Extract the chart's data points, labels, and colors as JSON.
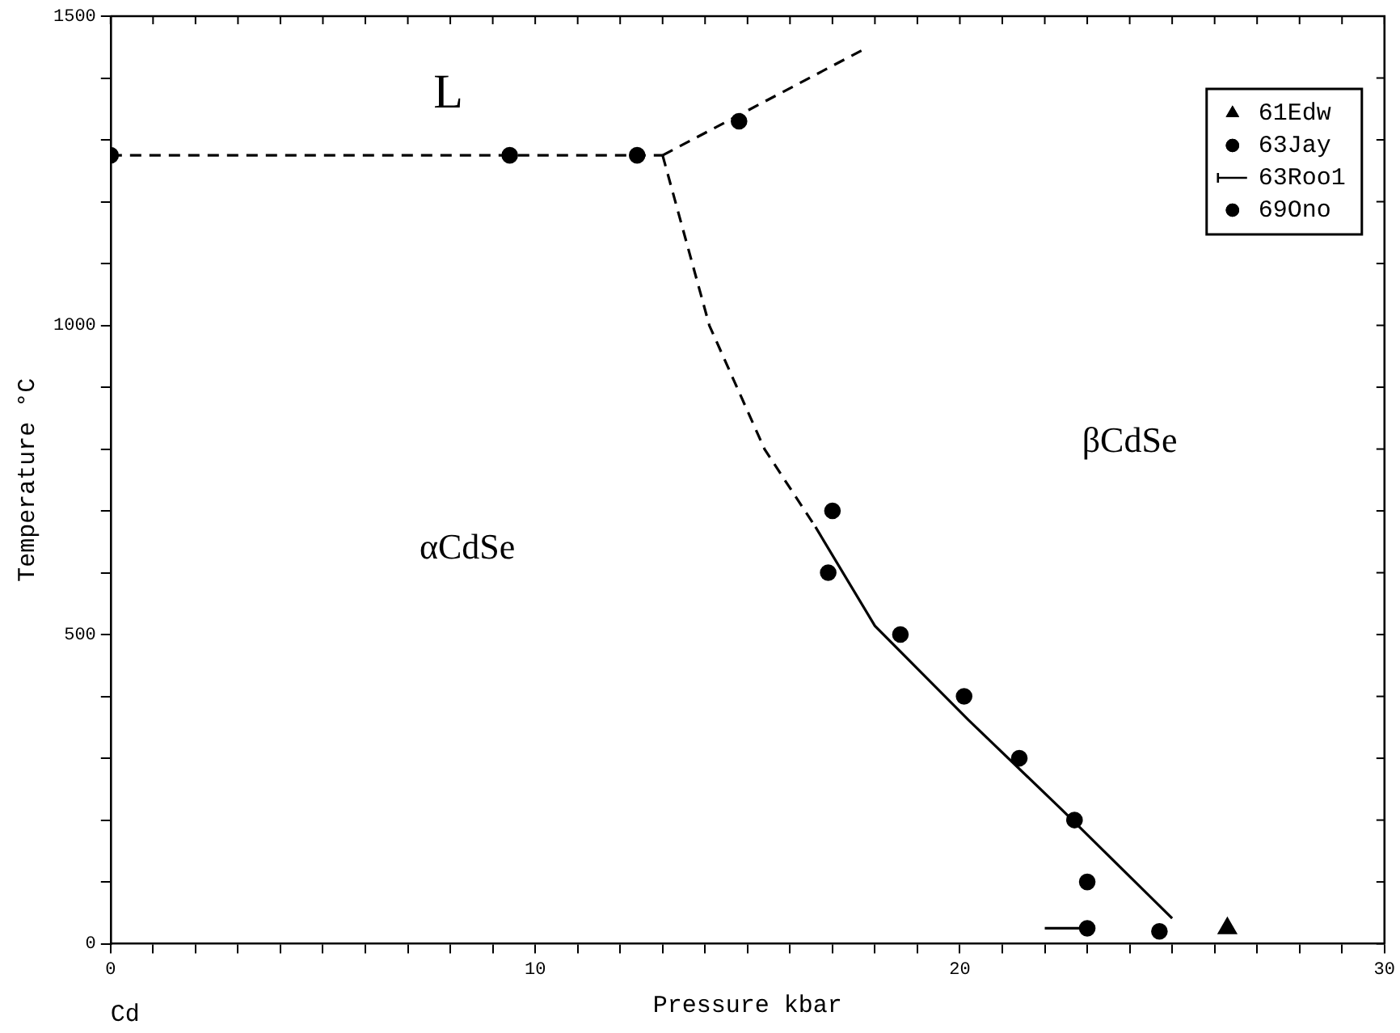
{
  "chart_data": {
    "type": "scatter",
    "xlabel": "Pressure kbar",
    "ylabel": "Temperature °C",
    "xlim": [
      0,
      30
    ],
    "ylim": [
      0,
      1500
    ],
    "xticks": [
      0,
      {
        "value": 1,
        "label": null
      },
      {
        "value": 2,
        "label": null
      },
      {
        "value": 3,
        "label": null
      },
      {
        "value": 4,
        "label": null
      },
      {
        "value": 5,
        "label": null
      },
      {
        "value": 6,
        "label": null
      },
      {
        "value": 7,
        "label": null
      },
      {
        "value": 8,
        "label": null
      },
      {
        "value": 9,
        "label": null
      },
      10,
      {
        "value": 11,
        "label": null
      },
      {
        "value": 12,
        "label": null
      },
      {
        "value": 13,
        "label": null
      },
      {
        "value": 14,
        "label": null
      },
      {
        "value": 15,
        "label": null
      },
      {
        "value": 16,
        "label": null
      },
      {
        "value": 17,
        "label": null
      },
      {
        "value": 18,
        "label": null
      },
      {
        "value": 19,
        "label": null
      },
      20,
      {
        "value": 21,
        "label": null
      },
      {
        "value": 22,
        "label": null
      },
      {
        "value": 23,
        "label": null
      },
      {
        "value": 24,
        "label": null
      },
      {
        "value": 25,
        "label": null
      },
      {
        "value": 26,
        "label": null
      },
      {
        "value": 27,
        "label": null
      },
      {
        "value": 28,
        "label": null
      },
      {
        "value": 29,
        "label": null
      },
      30
    ],
    "yticks": [
      0,
      {
        "value": 100,
        "label": null
      },
      {
        "value": 200,
        "label": null
      },
      {
        "value": 300,
        "label": null
      },
      {
        "value": 400,
        "label": null
      },
      500,
      {
        "value": 600,
        "label": null
      },
      {
        "value": 700,
        "label": null
      },
      {
        "value": 800,
        "label": null
      },
      {
        "value": 900,
        "label": null
      },
      1000,
      {
        "value": 1100,
        "label": null
      },
      {
        "value": 1200,
        "label": null
      },
      {
        "value": 1300,
        "label": null
      },
      {
        "value": 1400,
        "label": null
      },
      1500
    ],
    "grid": false,
    "legend": "top right",
    "series": [
      {
        "type": "line",
        "color": "#000000",
        "line_style": "dashed",
        "marker": "none",
        "x": [
          0,
          13.0
        ],
        "values": [
          1275,
          1275
        ]
      },
      {
        "type": "line",
        "color": "#000000",
        "line_style": "dashed",
        "marker": "none",
        "x": [
          13.0,
          17.7
        ],
        "values": [
          1275,
          1445
        ]
      },
      {
        "type": "line",
        "color": "#000000",
        "line_style": "dashed",
        "marker": "none",
        "x": [
          13.0,
          14.1,
          15.4,
          16.6
        ],
        "values": [
          1275,
          1000,
          800,
          674
        ]
      },
      {
        "type": "line",
        "color": "#000000",
        "line_style": "solid",
        "marker": "none",
        "x": [
          16.6,
          18.0,
          20.2,
          22.4,
          25.0
        ],
        "values": [
          674,
          514,
          362,
          217,
          41
        ]
      },
      {
        "name": "61Edw",
        "type": "scatter",
        "color": "#000000",
        "marker": "triangle",
        "x": [
          26.3
        ],
        "values": [
          25
        ]
      },
      {
        "name": "63Jay",
        "type": "scatter",
        "color": "#000000",
        "marker": "circle",
        "x": [
          0,
          9.4,
          12.4,
          14.8,
          23.0
        ],
        "values": [
          1275,
          1275,
          1275,
          1330,
          25
        ]
      },
      {
        "name": "63Roo1",
        "type": "line",
        "color": "#000000",
        "line_style": "solid",
        "marker": "none",
        "x": [
          22.0,
          23.0
        ],
        "values": [
          25,
          25
        ]
      },
      {
        "name": "69Ono",
        "type": "scatter",
        "color": "#000000",
        "marker": "circle",
        "x": [
          17.0,
          16.9,
          18.6,
          20.1,
          21.4,
          22.7,
          23.0,
          24.7
        ],
        "values": [
          700,
          600,
          500,
          400,
          300,
          200,
          100,
          20
        ]
      }
    ],
    "annotations": [
      "L",
      "βCdSe",
      "αCdSe",
      "Cd"
    ]
  }
}
